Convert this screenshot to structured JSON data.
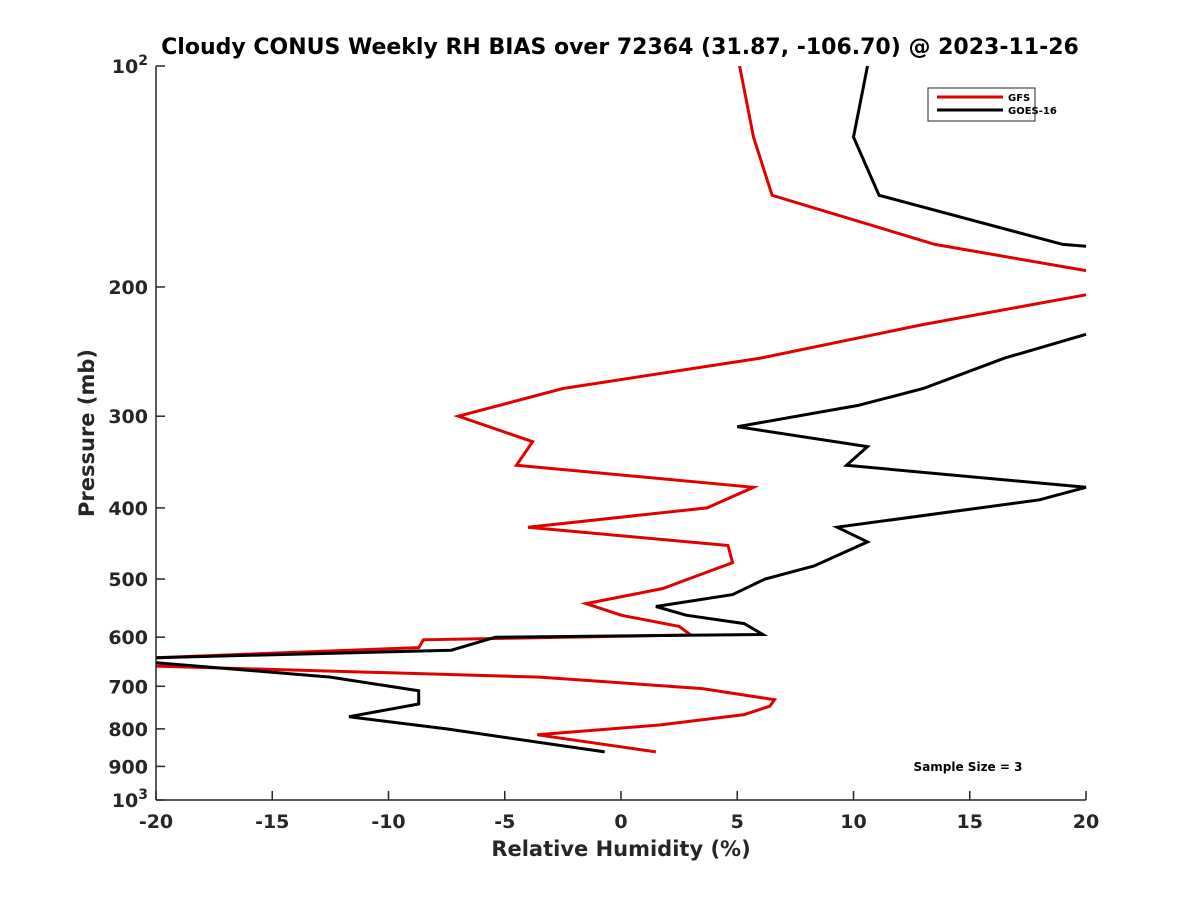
{
  "chart_data": {
    "type": "line",
    "title": "Cloudy CONUS Weekly RH BIAS over 72364 (31.87, -106.70) @ 2023-11-26",
    "xlabel": "Relative Humidity (%)",
    "ylabel": "Pressure (mb)",
    "xlim": [
      -20,
      20
    ],
    "ylim": [
      100,
      1000
    ],
    "y_scale": "log",
    "y_reversed": true,
    "grid": false,
    "legend_position": "top-right",
    "x_ticks": [
      -20,
      -15,
      -10,
      -5,
      0,
      5,
      10,
      15,
      20
    ],
    "x_tick_labels": [
      "-20",
      "-15",
      "-10",
      "-5",
      "0",
      "5",
      "10",
      "15",
      "20"
    ],
    "y_ticks": [
      200,
      300,
      400,
      500,
      600,
      700,
      800,
      900
    ],
    "y_tick_labels": [
      "200",
      "300",
      "400",
      "500",
      "600",
      "700",
      "800",
      "900"
    ],
    "y_special_ticks": [
      {
        "value": 100,
        "base": "10",
        "exp": "2"
      },
      {
        "value": 1000,
        "base": "10",
        "exp": "3"
      }
    ],
    "annotation": "Sample Size = 3",
    "series": [
      {
        "name": "GFS",
        "color": "#e00000",
        "points": [
          [
            5.1,
            100
          ],
          [
            5.7,
            125
          ],
          [
            6.5,
            150
          ],
          [
            13.5,
            175
          ],
          [
            20,
            190
          ],
          [
            null,
            190
          ],
          [
            20,
            205
          ],
          [
            13,
            225
          ],
          [
            6,
            250
          ],
          [
            -2.5,
            275
          ],
          [
            -7,
            300
          ],
          [
            -3.8,
            325
          ],
          [
            -4.5,
            350
          ],
          [
            5.7,
            375
          ],
          [
            3.7,
            400
          ],
          [
            -4,
            425
          ],
          [
            4.6,
            450
          ],
          [
            4.8,
            475
          ],
          [
            2.9,
            500
          ],
          [
            1.8,
            515
          ],
          [
            -1.5,
            540
          ],
          [
            0,
            560
          ],
          [
            2.5,
            580
          ],
          [
            3.0,
            596
          ],
          [
            -8.5,
            605
          ],
          [
            -8.7,
            620
          ],
          [
            -20,
            640
          ],
          [
            null,
            640
          ],
          [
            -20,
            657
          ],
          [
            -3.5,
            680
          ],
          [
            3.5,
            705
          ],
          [
            6.6,
            730
          ],
          [
            6.4,
            745
          ],
          [
            5.3,
            765
          ],
          [
            1.7,
            790
          ],
          [
            -3.6,
            815
          ],
          [
            1.5,
            860
          ]
        ]
      },
      {
        "name": "GOES-16",
        "color": "#000000",
        "points": [
          [
            10.6,
            100
          ],
          [
            10.0,
            125
          ],
          [
            11.1,
            150
          ],
          [
            19.0,
            175
          ],
          [
            20,
            176
          ],
          [
            null,
            176
          ],
          [
            20,
            232
          ],
          [
            16.5,
            250
          ],
          [
            13.0,
            275
          ],
          [
            10.2,
            290
          ],
          [
            5.0,
            310
          ],
          [
            10.6,
            330
          ],
          [
            9.7,
            350
          ],
          [
            20,
            375
          ],
          [
            18.0,
            390
          ],
          [
            9.3,
            425
          ],
          [
            10.6,
            445
          ],
          [
            8.3,
            480
          ],
          [
            6.2,
            500
          ],
          [
            4.8,
            525
          ],
          [
            1.5,
            545
          ],
          [
            2.8,
            560
          ],
          [
            5.3,
            575
          ],
          [
            6.1,
            595
          ],
          [
            -5.4,
            600
          ],
          [
            -7.3,
            625
          ],
          [
            -20,
            640
          ],
          [
            null,
            640
          ],
          [
            -20,
            650
          ],
          [
            -12.5,
            680
          ],
          [
            -8.7,
            710
          ],
          [
            -8.7,
            740
          ],
          [
            -11.7,
            770
          ],
          [
            -7.5,
            800
          ],
          [
            -0.7,
            860
          ]
        ]
      }
    ]
  }
}
